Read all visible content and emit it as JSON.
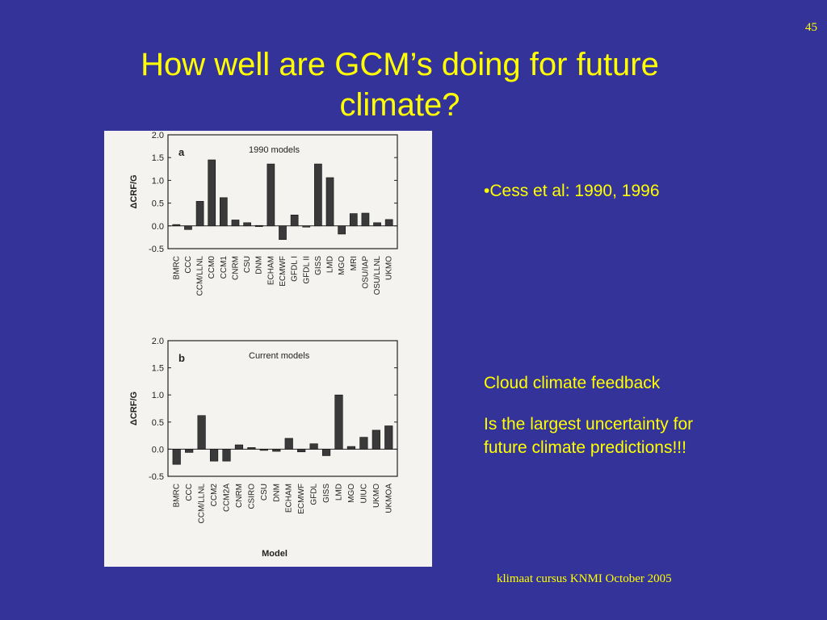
{
  "slide": {
    "number": "45",
    "title": "How well are GCM’s doing for future climate?",
    "bullet": "•Cess et al: 1990, 1996",
    "heading": "Cloud climate feedback",
    "body": "Is the largest uncertainty for future climate predictions!!!",
    "footer": "klimaat cursus KNMI  October 2005"
  },
  "chart_data": [
    {
      "type": "bar",
      "panel": "a",
      "title": "1990 models",
      "ylabel": "ΔCRF/G",
      "xlabel": "",
      "ylim": [
        -0.5,
        2.0
      ],
      "yticks": [
        "2.0",
        "1.5",
        "1.0",
        "0.5",
        "0.0",
        "-0.5"
      ],
      "categories": [
        "BMRC",
        "CCC",
        "CCM/LLNL",
        "CCM0",
        "CCM1",
        "CNRM",
        "CSU",
        "DNM",
        "ECHAM",
        "ECMWF",
        "GFDL I",
        "GFDL II",
        "GISS",
        "LMD",
        "MGO",
        "MRI",
        "OSU/IAP",
        "OSU/LLNL",
        "UKMO"
      ],
      "values": [
        0.03,
        -0.08,
        0.54,
        1.45,
        0.62,
        0.13,
        0.07,
        0.01,
        1.36,
        -0.3,
        0.24,
        -0.02,
        1.36,
        1.06,
        -0.18,
        0.27,
        0.28,
        0.07,
        0.14
      ]
    },
    {
      "type": "bar",
      "panel": "b",
      "title": "Current models",
      "ylabel": "ΔCRF/G",
      "xlabel": "Model",
      "ylim": [
        -0.5,
        2.0
      ],
      "yticks": [
        "2.0",
        "1.5",
        "1.0",
        "0.5",
        "0.0",
        "-0.5"
      ],
      "categories": [
        "BMRC",
        "CCC",
        "CCM/LLNL",
        "CCM2",
        "CCM2A",
        "CNRM",
        "CSIRO",
        "CSU",
        "DNM",
        "ECHAM",
        "ECMWF",
        "GFDL",
        "GISS",
        "LMD",
        "MGO",
        "UIUC",
        "UKMO",
        "UKMOA"
      ],
      "values": [
        -0.28,
        -0.06,
        0.62,
        -0.22,
        -0.22,
        0.08,
        0.03,
        -0.02,
        -0.04,
        0.2,
        -0.05,
        0.1,
        -0.12,
        1.0,
        0.05,
        0.22,
        0.35,
        0.43
      ]
    }
  ]
}
